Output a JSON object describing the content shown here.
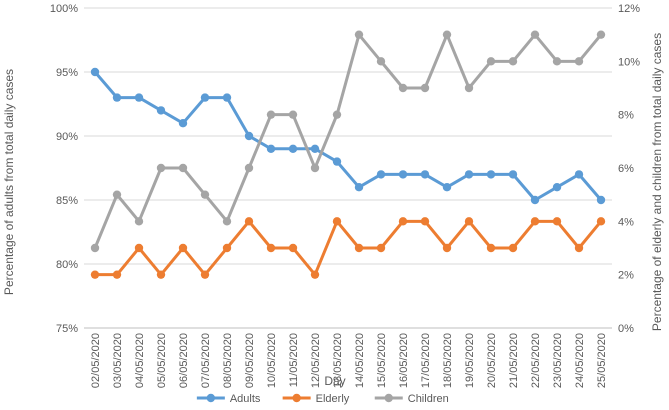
{
  "chart_data": {
    "type": "line",
    "xlabel": "Day",
    "ylabel_left": "Percentage of adults from total daily cases",
    "ylabel_right": "Percentage of elderly and children from total daily cases",
    "ylim_left": [
      75,
      100
    ],
    "ylim_right": [
      0,
      12
    ],
    "yticks_left": [
      "75%",
      "80%",
      "85%",
      "90%",
      "95%",
      "100%"
    ],
    "yticks_right": [
      "0%",
      "2%",
      "4%",
      "6%",
      "8%",
      "10%",
      "12%"
    ],
    "grid": true,
    "legend_position": "bottom",
    "categories": [
      "02/05/2020",
      "03/05/2020",
      "04/05/2020",
      "05/05/2020",
      "06/05/2020",
      "07/05/2020",
      "08/05/2020",
      "09/05/2020",
      "10/05/2020",
      "11/05/2020",
      "12/05/2020",
      "13/05/2020",
      "14/05/2020",
      "15/05/2020",
      "16/05/2020",
      "17/05/2020",
      "18/05/2020",
      "19/05/2020",
      "20/05/2020",
      "21/05/2020",
      "22/05/2020",
      "23/05/2020",
      "24/05/2020",
      "25/05/2020"
    ],
    "series": [
      {
        "name": "Adults",
        "axis": "left",
        "color": "#5B9BD5",
        "values": [
          95,
          93,
          93,
          92,
          91,
          93,
          93,
          90,
          89,
          89,
          89,
          88,
          86,
          87,
          87,
          87,
          86,
          87,
          87,
          87,
          85,
          86,
          87,
          85
        ]
      },
      {
        "name": "Elderly",
        "axis": "right",
        "color": "#ED7D31",
        "values": [
          2,
          2,
          3,
          2,
          3,
          2,
          3,
          4,
          3,
          3,
          2,
          4,
          3,
          3,
          4,
          4,
          3,
          4,
          3,
          3,
          4,
          4,
          3,
          4
        ]
      },
      {
        "name": "Children",
        "axis": "right",
        "color": "#A5A5A5",
        "values": [
          3,
          5,
          4,
          6,
          6,
          5,
          4,
          6,
          8,
          8,
          6,
          8,
          11,
          10,
          9,
          9,
          11,
          9,
          10,
          10,
          11,
          10,
          10,
          11
        ]
      }
    ]
  }
}
